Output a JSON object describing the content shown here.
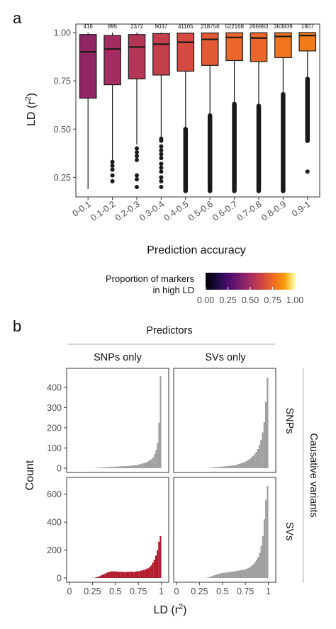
{
  "panel_a": {
    "letter": "a",
    "ylabel_main": "LD (r",
    "ylabel_sup": "2",
    "ylabel_close": ")",
    "xlabel": "Prediction accuracy",
    "legend_title_line1": "Proportion of markers",
    "legend_title_line2": "in high LD",
    "legend_ticks": [
      "0.00",
      "0.25",
      "0.50",
      "0.75",
      "1.00"
    ]
  },
  "panel_b": {
    "letter": "b",
    "top_strip_title": "Predictors",
    "col_labels": [
      "SNPs only",
      "SVs only"
    ],
    "row_labels": [
      "SNPs",
      "SVs"
    ],
    "right_strip_title": "Causative variants",
    "ylabel": "Count",
    "xlabel_main": "LD (r",
    "xlabel_sup": "2",
    "xlabel_close": ")"
  },
  "chart_data": [
    {
      "type": "box",
      "categories": [
        "0-0.1",
        "0.1-0.2",
        "0.2-0.3",
        "0.3-0.4",
        "0.4-0.5",
        "0.5-0.6",
        "0.6-0.7",
        "0.7-0.8",
        "0.8-0.9",
        "0.9-1"
      ],
      "counts": [
        "416",
        "895",
        "2372",
        "9037",
        "41165",
        "218756",
        "522168",
        "266993",
        "363939",
        "1907"
      ],
      "yticks": [
        "0.25",
        "0.50",
        "0.75",
        "1.00"
      ],
      "ylim": [
        0.2,
        1.0
      ],
      "grid": false,
      "boxes": [
        {
          "min": 0.19,
          "q1": 0.66,
          "median": 0.9,
          "q3": 0.99,
          "max": 1.0,
          "fill": 0.45,
          "outliers": []
        },
        {
          "min": 0.34,
          "q1": 0.73,
          "median": 0.915,
          "q3": 0.985,
          "max": 1.0,
          "fill": 0.5,
          "outliers": [
            0.23,
            0.26,
            0.29,
            0.31,
            0.33
          ]
        },
        {
          "min": 0.42,
          "q1": 0.76,
          "median": 0.925,
          "q3": 0.99,
          "max": 1.0,
          "fill": 0.55,
          "outliers": [
            0.2,
            0.24,
            0.26,
            0.34,
            0.36,
            0.38,
            0.4
          ]
        },
        {
          "min": 0.46,
          "q1": 0.78,
          "median": 0.94,
          "q3": 0.995,
          "max": 1.0,
          "fill": 0.6,
          "outliers": [
            0.2,
            0.23,
            0.25,
            0.28,
            0.3,
            0.32,
            0.35,
            0.37,
            0.39,
            0.41,
            0.44,
            0.45
          ]
        },
        {
          "min": 0.5,
          "q1": 0.8,
          "median": 0.95,
          "q3": 0.997,
          "max": 1.0,
          "fill": 0.65,
          "outliers": [
            0.5,
            0.18
          ]
        },
        {
          "min": 0.58,
          "q1": 0.83,
          "median": 0.965,
          "q3": 0.998,
          "max": 1.0,
          "fill": 0.7,
          "outliers": [
            0.57,
            0.18
          ]
        },
        {
          "min": 0.64,
          "q1": 0.855,
          "median": 0.975,
          "q3": 0.999,
          "max": 1.0,
          "fill": 0.74,
          "outliers": [
            0.63,
            0.18
          ]
        },
        {
          "min": 0.63,
          "q1": 0.85,
          "median": 0.972,
          "q3": 0.999,
          "max": 1.0,
          "fill": 0.74,
          "outliers": [
            0.62,
            0.18
          ]
        },
        {
          "min": 0.69,
          "q1": 0.87,
          "median": 0.98,
          "q3": 0.999,
          "max": 1.0,
          "fill": 0.78,
          "outliers": [
            0.68,
            0.18
          ]
        },
        {
          "min": 0.77,
          "q1": 0.905,
          "median": 0.985,
          "q3": 1.0,
          "max": 1.0,
          "fill": 0.8,
          "outliers": [
            0.76,
            0.44,
            0.28
          ]
        }
      ],
      "legend": {
        "title": "Proportion of markers in high LD",
        "range": [
          0,
          1
        ],
        "palette": "inferno-like",
        "placement": "bottom"
      }
    },
    {
      "type": "histogram",
      "facets": "2x2",
      "rows": [
        "SNPs",
        "SVs"
      ],
      "cols": [
        "SNPs only",
        "SVs only"
      ],
      "xticks": [
        "0",
        "0.25",
        "0.5",
        "0.75",
        "1"
      ],
      "xlim": [
        0,
        1.05
      ],
      "panels": [
        {
          "row": "SNPs",
          "col": "SNPs only",
          "yticks": [
            "0",
            "100",
            "200",
            "300",
            "400"
          ],
          "ylim": [
            0,
            480
          ],
          "color": "#9e9e9e",
          "values": [
            0,
            0,
            0,
            0,
            0,
            0,
            0,
            0,
            0,
            0,
            0,
            0,
            0,
            0,
            0,
            0,
            0,
            1,
            1,
            2,
            2,
            3,
            4,
            4,
            5,
            5,
            6,
            6,
            7,
            7,
            7,
            8,
            8,
            8,
            9,
            9,
            10,
            10,
            10,
            11,
            11,
            12,
            12,
            13,
            14,
            15,
            16,
            18,
            20,
            22,
            24,
            26,
            28,
            32,
            36,
            40,
            46,
            54,
            70,
            90,
            125,
            225,
            455,
            0
          ]
        },
        {
          "row": "SNPs",
          "col": "SVs only",
          "yticks": [
            "0",
            "100",
            "200",
            "300"
          ],
          "ylim": [
            0,
            380
          ],
          "color": "#9e9e9e",
          "values": [
            0,
            0,
            0,
            0,
            0,
            0,
            0,
            0,
            0,
            0,
            0,
            0,
            0,
            0,
            0,
            0,
            0,
            0,
            0,
            0,
            1,
            2,
            3,
            3,
            4,
            4,
            5,
            6,
            6,
            7,
            7,
            8,
            9,
            10,
            10,
            11,
            12,
            14,
            16,
            18,
            20,
            22,
            25,
            28,
            32,
            36,
            42,
            48,
            55,
            64,
            75,
            90,
            110,
            140,
            180,
            260,
            355,
            0
          ]
        },
        {
          "row": "SVs",
          "col": "SNPs only",
          "yticks": [
            "0",
            "200",
            "400",
            "600"
          ],
          "ylim": [
            0,
            700
          ],
          "color": "#b2182b",
          "values": [
            0,
            0,
            0,
            0,
            0,
            0,
            0,
            0,
            0,
            0,
            0,
            0,
            0,
            0,
            0,
            0,
            2,
            5,
            8,
            12,
            18,
            22,
            28,
            32,
            38,
            42,
            45,
            48,
            48,
            46,
            48,
            45,
            44,
            46,
            44,
            45,
            42,
            44,
            44,
            45,
            46,
            44,
            45,
            46,
            50,
            48,
            52,
            55,
            58,
            60,
            66,
            70,
            80,
            90,
            110,
            130,
            160,
            200,
            260,
            300,
            0
          ]
        },
        {
          "row": "SVs",
          "col": "SVs only",
          "yticks": [
            "0",
            "200",
            "400",
            "600"
          ],
          "ylim": [
            0,
            700
          ],
          "color": "#9e9e9e",
          "values": [
            0,
            0,
            0,
            0,
            0,
            0,
            0,
            0,
            0,
            0,
            0,
            0,
            0,
            0,
            0,
            0,
            0,
            0,
            0,
            2,
            4,
            8,
            12,
            16,
            20,
            24,
            28,
            30,
            34,
            36,
            38,
            38,
            40,
            42,
            44,
            44,
            46,
            48,
            50,
            52,
            54,
            56,
            58,
            60,
            64,
            68,
            72,
            80,
            90,
            100,
            115,
            130,
            150,
            180,
            230,
            300,
            420,
            560,
            660,
            0
          ]
        }
      ]
    }
  ]
}
